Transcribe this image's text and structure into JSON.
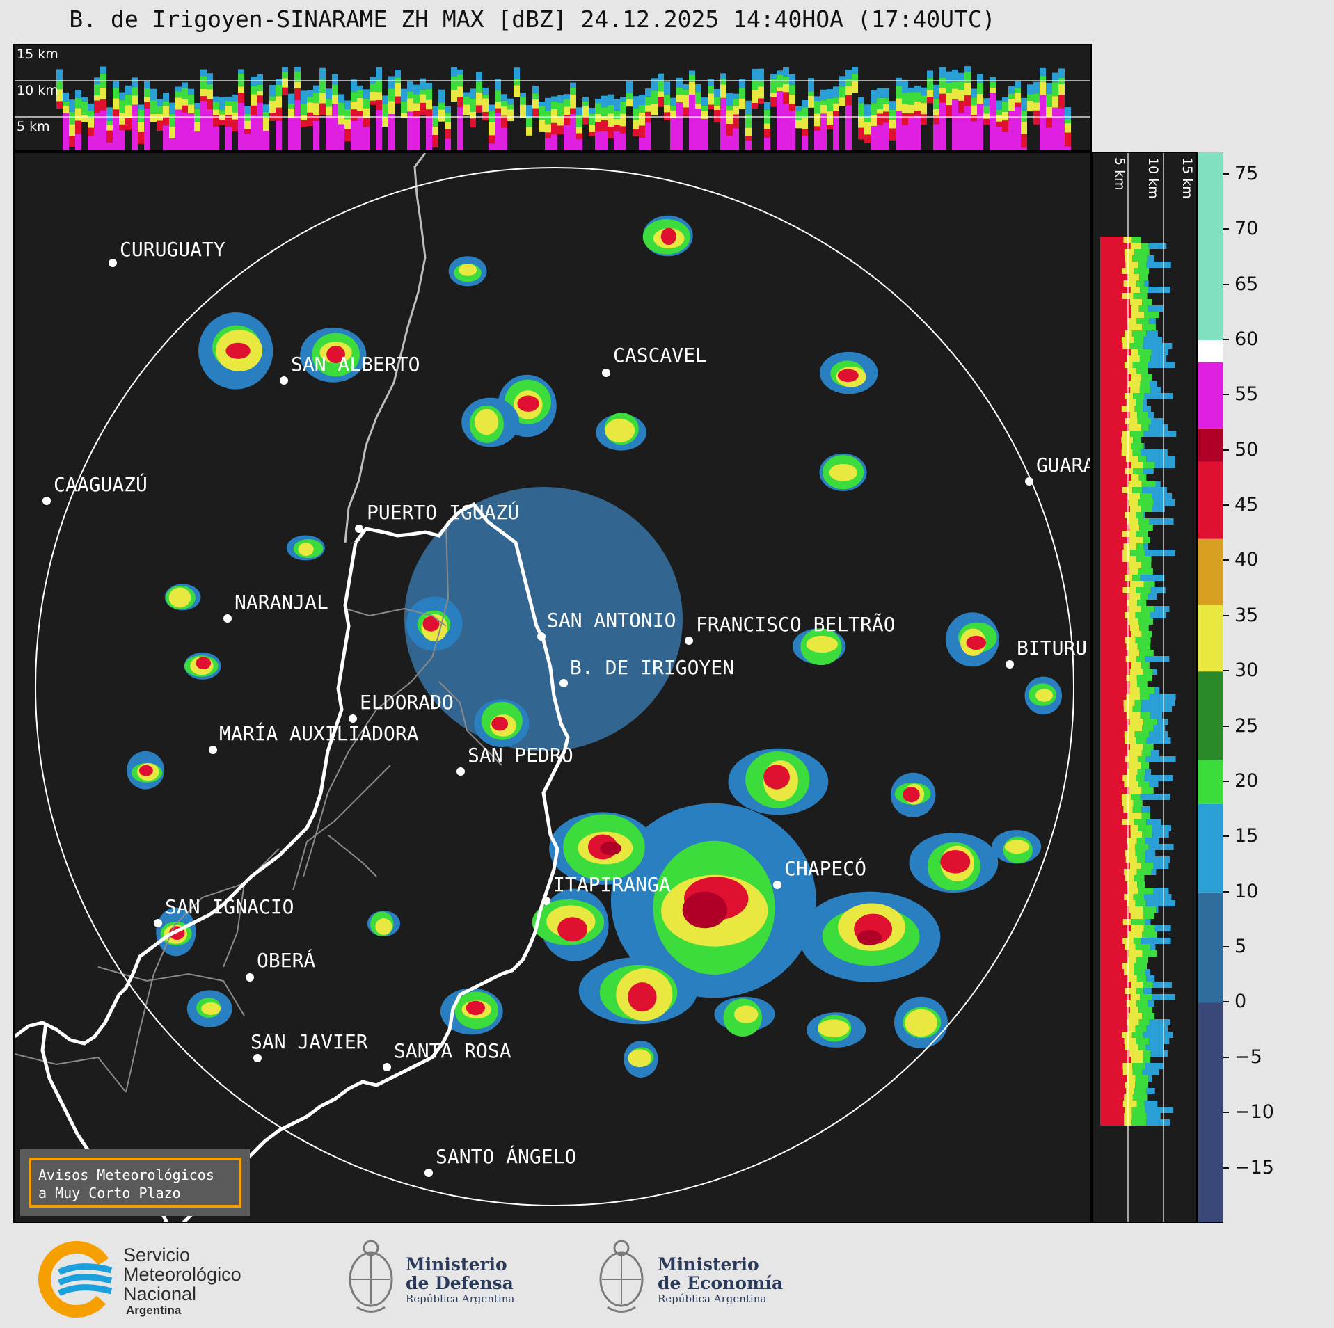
{
  "title": "B. de Irigoyen-SINARAME ZH MAX [dBZ] 24.12.2025 14:40HOA (17:40UTC)",
  "top_panel": {
    "height_labels": [
      "15 km",
      "10 km",
      "5 km"
    ]
  },
  "side_panel": {
    "height_labels": [
      "5 km",
      "10 km",
      "15 km"
    ]
  },
  "colorbar": {
    "ticks": [
      "75",
      "70",
      "65",
      "60",
      "55",
      "50",
      "45",
      "40",
      "35",
      "30",
      "25",
      "20",
      "15",
      "10",
      "5",
      "0",
      "−5",
      "−10",
      "−15"
    ],
    "tick_values": [
      75,
      70,
      65,
      60,
      55,
      50,
      45,
      40,
      35,
      30,
      25,
      20,
      15,
      10,
      5,
      0,
      -5,
      -10,
      -15
    ],
    "range": [
      -20,
      77
    ],
    "stops": [
      {
        "from": -20,
        "to": 0,
        "color": "#3a4878"
      },
      {
        "from": 0,
        "to": 10,
        "color": "#2f6e9c"
      },
      {
        "from": 10,
        "to": 18,
        "color": "#2a9fd6"
      },
      {
        "from": 18,
        "to": 22,
        "color": "#3ddc3d"
      },
      {
        "from": 22,
        "to": 30,
        "color": "#2a8a2a"
      },
      {
        "from": 30,
        "to": 36,
        "color": "#e8e840"
      },
      {
        "from": 36,
        "to": 42,
        "color": "#d8a020"
      },
      {
        "from": 42,
        "to": 49,
        "color": "#e01030"
      },
      {
        "from": 49,
        "to": 52,
        "color": "#b00028"
      },
      {
        "from": 52,
        "to": 58,
        "color": "#e020e0"
      },
      {
        "from": 58,
        "to": 60,
        "color": "#ffffff"
      },
      {
        "from": 60,
        "to": 77,
        "color": "#80e0c0"
      }
    ]
  },
  "cities": [
    {
      "name": "CURUGUATY",
      "label": "CURUGUATY"
    },
    {
      "name": "SAN ALBERTO",
      "label": "SAN ALBERTO"
    },
    {
      "name": "CASCAVEL",
      "label": "CASCAVEL"
    },
    {
      "name": "CAAGUAZU",
      "label": "CAAGUAZÚ"
    },
    {
      "name": "GUARAPUAVA",
      "label": "GUARA"
    },
    {
      "name": "PUERTO IGUAZU",
      "label": "PUERTO IGUAZÚ"
    },
    {
      "name": "NARANJAL",
      "label": "NARANJAL"
    },
    {
      "name": "SAN ANTONIO",
      "label": "SAN ANTONIO"
    },
    {
      "name": "FRANCISCO BELTRAO",
      "label": "FRANCISCO BELTRÃO"
    },
    {
      "name": "BITURUNA",
      "label": "BITURU"
    },
    {
      "name": "B DE IRIGOYEN",
      "label": "B. DE IRIGOYEN"
    },
    {
      "name": "ELDORADO",
      "label": "ELDORADO"
    },
    {
      "name": "MARIA AUXILIADORA",
      "label": "MARÍA AUXILIADORA"
    },
    {
      "name": "SAN PEDRO",
      "label": "SAN PEDRO"
    },
    {
      "name": "ITAPIRANGA",
      "label": "ITAPIRANGA"
    },
    {
      "name": "CHAPECO",
      "label": "CHAPECÓ"
    },
    {
      "name": "SAN IGNACIO",
      "label": "SAN IGNACIO"
    },
    {
      "name": "OBERA",
      "label": "OBERÁ"
    },
    {
      "name": "SAN JAVIER",
      "label": "SAN JAVIER"
    },
    {
      "name": "SANTA ROSA",
      "label": "SANTA ROSA"
    },
    {
      "name": "SANTO ANGELO",
      "label": "SANTO ÁNGELO"
    }
  ],
  "warning": {
    "line1": "Avisos Meteorológicos",
    "line2": "a Muy Corto Plazo"
  },
  "footer": {
    "smn": {
      "line1": "Servicio",
      "line2": "Meteorológico",
      "line3": "Nacional",
      "line4": "Argentina"
    },
    "defensa": {
      "line1": "Ministerio",
      "line2": "de Defensa",
      "sub": "República Argentina"
    },
    "economia": {
      "line1": "Ministerio",
      "line2": "de Economía",
      "sub": "República Argentina"
    }
  },
  "colors": {
    "background": "#1c1c1c",
    "page": "#e6e6e6",
    "border": "#ffffff",
    "accent": "#f5a000",
    "smn_blue": "#1aa0dc",
    "smn_yellow": "#f5a000"
  }
}
